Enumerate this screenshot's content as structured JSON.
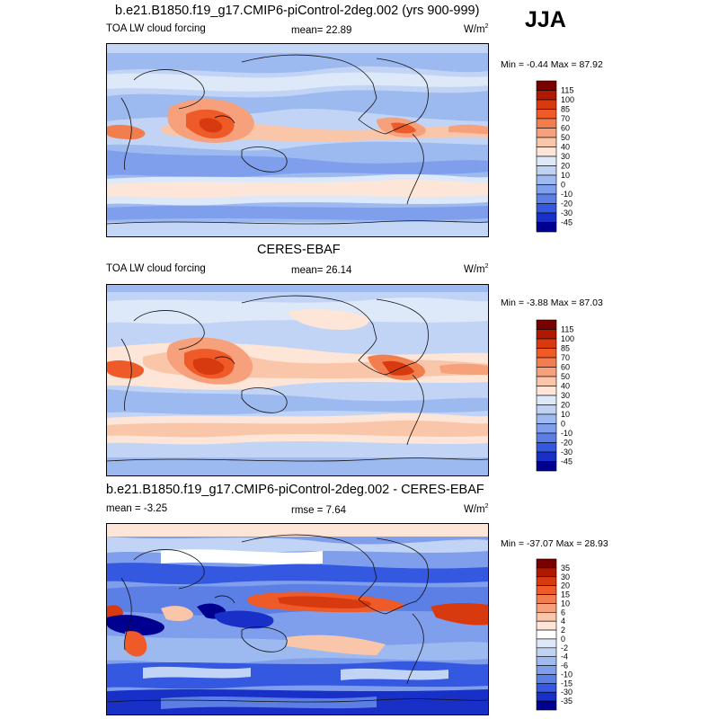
{
  "season": "JJA",
  "panels": [
    {
      "id": "model",
      "title": "b.e21.B1850.f19_g17.CMIP6-piControl-2deg.002 (yrs 900-999)",
      "left_label": "TOA LW cloud forcing",
      "center_label": "mean=  22.89",
      "units": "W/m",
      "units_sup": "2",
      "minmax": "Min = -0.44 Max = 87.92",
      "colorbar_ticks": [
        "115",
        "100",
        "85",
        "70",
        "60",
        "50",
        "40",
        "30",
        "20",
        "10",
        "0",
        "-10",
        "-20",
        "-30",
        "-45"
      ],
      "colorbar_colors": [
        "#7a0000",
        "#b01800",
        "#d83a10",
        "#ee5a28",
        "#f27e50",
        "#f6a07c",
        "#fac6aa",
        "#fde6d8",
        "#dde8f9",
        "#c0d2f4",
        "#9fbaf0",
        "#7f9eeb",
        "#5c7fe6",
        "#3558e0",
        "#1830c8",
        "#000090"
      ]
    },
    {
      "id": "obs",
      "title": "CERES-EBAF",
      "left_label": "TOA LW cloud forcing",
      "center_label": "mean=  26.14",
      "units": "W/m",
      "units_sup": "2",
      "minmax": "Min = -3.88 Max =  87.03",
      "colorbar_ticks": [
        "115",
        "100",
        "85",
        "70",
        "60",
        "50",
        "40",
        "30",
        "20",
        "10",
        "0",
        "-10",
        "-20",
        "-30",
        "-45"
      ],
      "colorbar_colors": [
        "#7a0000",
        "#b01800",
        "#d83a10",
        "#ee5a28",
        "#f27e50",
        "#f6a07c",
        "#fac6aa",
        "#fde6d8",
        "#dde8f9",
        "#c0d2f4",
        "#9fbaf0",
        "#7f9eeb",
        "#5c7fe6",
        "#3558e0",
        "#1830c8",
        "#000090"
      ]
    },
    {
      "id": "diff",
      "title": "b.e21.B1850.f19_g17.CMIP6-piControl-2deg.002 - CERES-EBAF",
      "left_label": "mean =  -3.25",
      "center_label": "rmse =  7.64",
      "units": "W/m",
      "units_sup": "2",
      "minmax": "Min = -37.07 Max =  28.93",
      "colorbar_ticks": [
        "35",
        "30",
        "20",
        "15",
        "10",
        "6",
        "4",
        "2",
        "0",
        "-2",
        "-4",
        "-6",
        "-10",
        "-15",
        "-30",
        "-35"
      ],
      "colorbar_colors": [
        "#7a0000",
        "#b01800",
        "#d83a10",
        "#ee5a28",
        "#f27e50",
        "#f6a07c",
        "#fac6aa",
        "#fde6d8",
        "#ffffff",
        "#dde8f9",
        "#c0d2f4",
        "#9fbaf0",
        "#7f9eeb",
        "#5c7fe6",
        "#3558e0",
        "#1830c8",
        "#000090"
      ]
    }
  ]
}
